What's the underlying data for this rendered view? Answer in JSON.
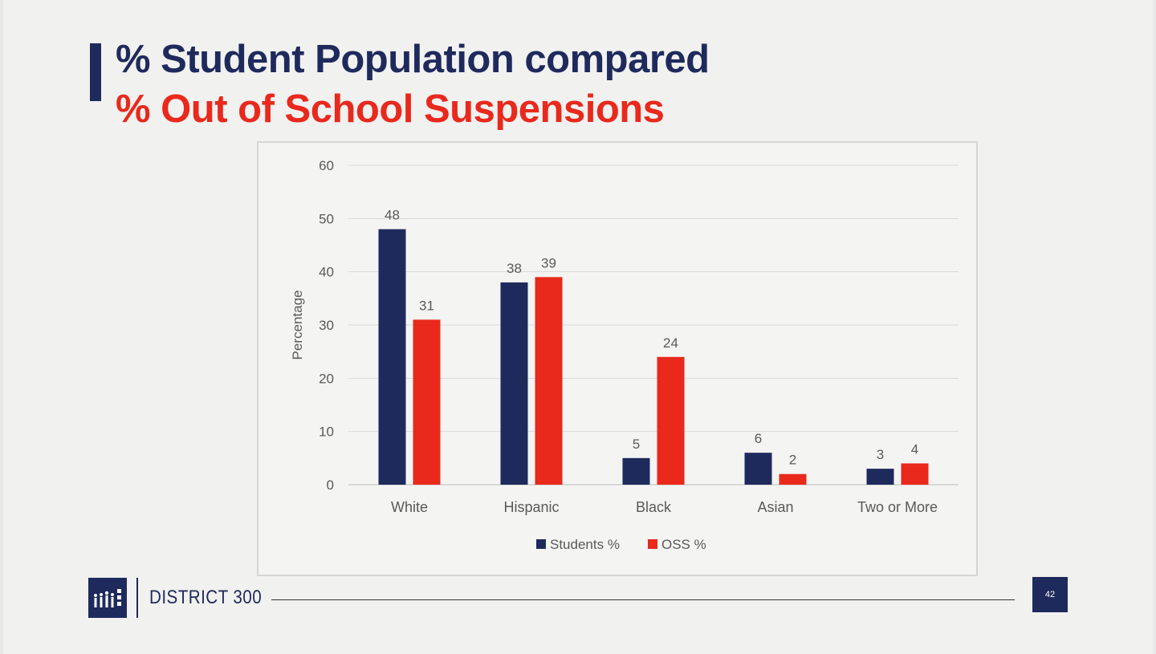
{
  "slide": {
    "title_line_1": "% Student Population compared",
    "title_line_2": "% Out of School Suspensions",
    "page_number": "42"
  },
  "footer": {
    "brand": "DISTRICT 300",
    "logo_icon": "district-300-logo-icon"
  },
  "colors": {
    "navy": "#1f2a5c",
    "red": "#e8291c"
  },
  "chart_data": {
    "type": "bar",
    "title": "",
    "xlabel": "",
    "ylabel": "Percentage",
    "ylim": [
      0,
      60
    ],
    "yticks": [
      0,
      10,
      20,
      30,
      40,
      50,
      60
    ],
    "grid": true,
    "legend_position": "bottom",
    "categories": [
      "White",
      "Hispanic",
      "Black",
      "Asian",
      "Two or More"
    ],
    "series": [
      {
        "name": "Students %",
        "color": "#1f2a5c",
        "values": [
          48,
          38,
          5,
          6,
          3
        ]
      },
      {
        "name": "OSS %",
        "color": "#e8291c",
        "values": [
          31,
          39,
          24,
          2,
          4
        ]
      }
    ]
  }
}
